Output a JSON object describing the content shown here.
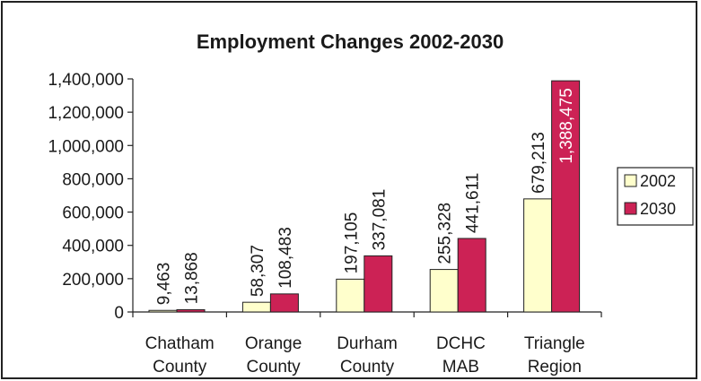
{
  "chart_data": {
    "type": "bar",
    "title": "Employment Changes 2002-2030",
    "xlabel": "",
    "ylabel": "",
    "categories": [
      [
        "Chatham",
        "County"
      ],
      [
        "Orange",
        "County"
      ],
      [
        "Durham",
        "County"
      ],
      [
        "DCHC",
        "MAB"
      ],
      [
        "Triangle",
        "Region"
      ]
    ],
    "series": [
      {
        "name": "2002",
        "values": [
          9463,
          58307,
          197105,
          255328,
          679213
        ],
        "labels": [
          "9,463",
          "58,307",
          "197,105",
          "255,328",
          "679,213"
        ],
        "color": "#ffffcc"
      },
      {
        "name": "2030",
        "values": [
          13868,
          108483,
          337081,
          441611,
          1388475
        ],
        "labels": [
          "13,868",
          "108,483",
          "337,081",
          "441,611",
          "1,388,475"
        ],
        "color": "#cc2255"
      }
    ],
    "ylim": [
      0,
      1400000
    ],
    "yticks": [
      0,
      200000,
      400000,
      600000,
      800000,
      1000000,
      1200000,
      1400000
    ],
    "ytick_labels": [
      "0",
      "200,000",
      "400,000",
      "600,000",
      "800,000",
      "1,000,000",
      "1,200,000",
      "1,400,000"
    ],
    "grid": false,
    "legend": "right"
  }
}
